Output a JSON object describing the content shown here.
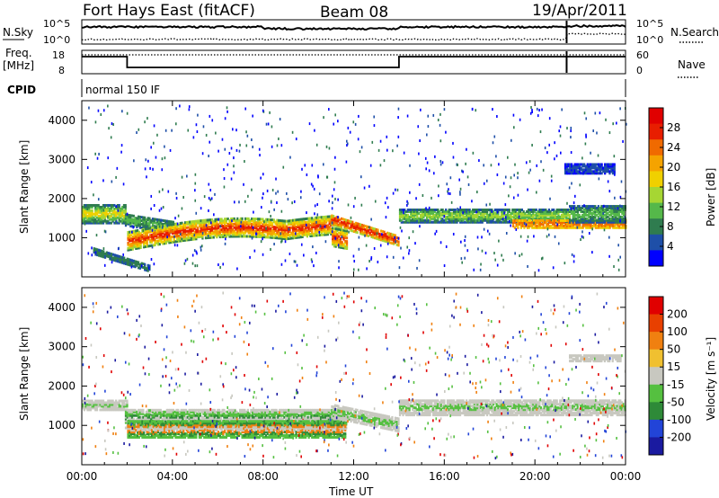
{
  "header": {
    "station": "Fort Hays East (fitACF)",
    "beam": "Beam 08",
    "date": "19/Apr/2011"
  },
  "status_panels": {
    "nsky_label": "N.Sky",
    "nsky_scale": [
      "10^5",
      "10^0"
    ],
    "nsearch_label": "N.Search",
    "nsearch_scale": [
      "10^5",
      "10^0"
    ],
    "freq_label": "Freq.",
    "freq_unit": "[MHz]",
    "freq_scale": [
      "18",
      "8"
    ],
    "nave_label": "Nave",
    "nave_scale": [
      "60",
      "0"
    ],
    "cpid_label": "CPID",
    "cpid_value": "normal 150 IF"
  },
  "chart_data": [
    {
      "type": "heatmap",
      "name": "power",
      "ylabel": "Slant Range [km]",
      "y_ticks": [
        "1000",
        "2000",
        "3000",
        "4000"
      ],
      "ylim": [
        0,
        4500
      ],
      "x_ticks": [
        "00:00",
        "04:00",
        "08:00",
        "12:00",
        "16:00",
        "20:00",
        "00:00"
      ],
      "xlim_hours": [
        0,
        24
      ],
      "colorbar_label": "Power [dB]",
      "colorbar_ticks": [
        "4",
        "8",
        "12",
        "16",
        "20",
        "24",
        "28"
      ],
      "colorbar_colors": [
        "#0000ff",
        "#1e4fa8",
        "#2f7c4f",
        "#55b84a",
        "#a6d633",
        "#f0d000",
        "#f5a300",
        "#f06a00",
        "#e81e00",
        "#e00000"
      ]
    },
    {
      "type": "heatmap",
      "name": "velocity",
      "ylabel": "Slant Range [km]",
      "y_ticks": [
        "1000",
        "2000",
        "3000",
        "4000"
      ],
      "ylim": [
        0,
        4500
      ],
      "x_ticks": [
        "00:00",
        "04:00",
        "08:00",
        "12:00",
        "16:00",
        "20:00",
        "00:00"
      ],
      "xlim_hours": [
        0,
        24
      ],
      "xlabel": "Time UT",
      "colorbar_label": "Velocity [m s⁻¹]",
      "colorbar_ticks": [
        "200",
        "100",
        "50",
        "15",
        "-15",
        "-50",
        "-100",
        "-200"
      ],
      "colorbar_colors": [
        "#1a1aa0",
        "#2244d8",
        "#2e8a38",
        "#55c040",
        "#c8c8c0",
        "#f0c030",
        "#f08010",
        "#e84000",
        "#e00000"
      ]
    }
  ]
}
